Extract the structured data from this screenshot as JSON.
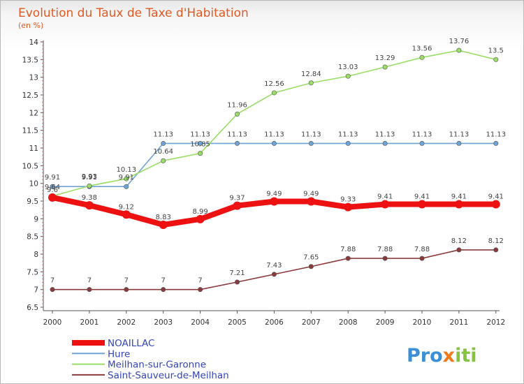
{
  "chart_data": {
    "type": "line",
    "title": "Evolution du Taux de Taxe d'Habitation",
    "subtitle": "(en %)",
    "x": [
      "2000",
      "2001",
      "2002",
      "2003",
      "2004",
      "2005",
      "2006",
      "2007",
      "2008",
      "2009",
      "2010",
      "2011",
      "2012"
    ],
    "ylim": [
      6.5,
      14
    ],
    "yticks": [
      "6.5",
      "7",
      "7.5",
      "8",
      "8.5",
      "9",
      "9.5",
      "10",
      "10.5",
      "11",
      "11.5",
      "12",
      "12.5",
      "13",
      "13.5",
      "14"
    ],
    "grid": false,
    "legend_position": "bottom-left",
    "series": [
      {
        "name": "NOAILLAC",
        "color": "#ee1111",
        "values": [
          9.6,
          9.38,
          9.12,
          8.83,
          8.99,
          9.37,
          9.49,
          9.49,
          9.33,
          9.41,
          9.41,
          9.41,
          9.41
        ],
        "labels": [
          "9.6",
          "9.38",
          "9.12",
          "8.83",
          "8.99",
          "9.37",
          "9.49",
          "9.49",
          "9.33",
          "9.41",
          "9.41",
          "9.41",
          "9.41"
        ]
      },
      {
        "name": "Hure",
        "color": "#6fa3d6",
        "values": [
          9.91,
          9.91,
          9.91,
          11.13,
          11.13,
          11.13,
          11.13,
          11.13,
          11.13,
          11.13,
          11.13,
          11.13,
          11.13
        ],
        "labels": [
          "9.91",
          "9.91",
          "9.91",
          "11.13",
          "11.13",
          "11.13",
          "11.13",
          "11.13",
          "11.13",
          "11.13",
          "11.13",
          "11.13",
          "11.13"
        ]
      },
      {
        "name": "Meilhan-sur-Garonne",
        "color": "#99dd66",
        "values": [
          9.64,
          9.93,
          10.13,
          10.64,
          10.85,
          11.96,
          12.56,
          12.84,
          13.03,
          13.29,
          13.56,
          13.76,
          13.5
        ],
        "labels": [
          "9.64",
          "9.93",
          "10.13",
          "10.64",
          "10.85",
          "11.96",
          "12.56",
          "12.84",
          "13.03",
          "13.29",
          "13.56",
          "13.76",
          "13.5"
        ]
      },
      {
        "name": "Saint-Sauveur-de-Meilhan",
        "color": "#8a3a3a",
        "values": [
          7,
          7,
          7,
          7,
          7,
          7.21,
          7.43,
          7.65,
          7.88,
          7.88,
          7.88,
          8.12,
          8.12
        ],
        "labels": [
          "7",
          "7",
          "7",
          "7",
          "7",
          "7.21",
          "7.43",
          "7.65",
          "7.88",
          "7.88",
          "7.88",
          "8.12",
          "8.12"
        ]
      }
    ]
  },
  "branding": {
    "logo_text": "Proxiti"
  }
}
